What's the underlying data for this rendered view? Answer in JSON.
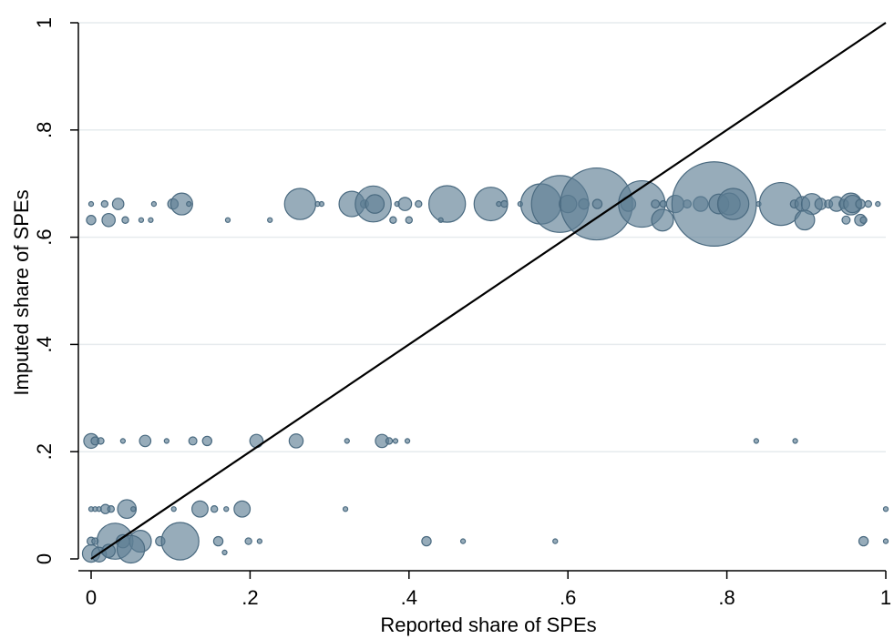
{
  "chart_data": {
    "type": "scatter",
    "xlabel": "Reported share of SPEs",
    "ylabel": "Imputed share of SPEs",
    "xlim": [
      0,
      1
    ],
    "ylim": [
      0,
      1
    ],
    "x_ticks": [
      {
        "value": 0,
        "label": "0"
      },
      {
        "value": 0.2,
        "label": ".2"
      },
      {
        "value": 0.4,
        "label": ".4"
      },
      {
        "value": 0.6,
        "label": ".6"
      },
      {
        "value": 0.8,
        "label": ".8"
      },
      {
        "value": 1,
        "label": "1"
      }
    ],
    "y_ticks": [
      {
        "value": 0,
        "label": "0"
      },
      {
        "value": 0.2,
        "label": ".2"
      },
      {
        "value": 0.4,
        "label": ".4"
      },
      {
        "value": 0.6,
        "label": ".6"
      },
      {
        "value": 0.8,
        "label": ".8"
      },
      {
        "value": 1,
        "label": "1"
      }
    ],
    "grid": "horizontal",
    "reference_line": {
      "from": [
        0,
        0
      ],
      "to": [
        1,
        1
      ],
      "color": "#000000"
    },
    "marker_color": "#5f7f95",
    "marker_fill_opacity": 0.65,
    "points": [
      {
        "x": 0.0,
        "y": 0.662,
        "w": 1
      },
      {
        "x": 0.017,
        "y": 0.662,
        "w": 2
      },
      {
        "x": 0.034,
        "y": 0.662,
        "w": 6
      },
      {
        "x": 0.079,
        "y": 0.662,
        "w": 1
      },
      {
        "x": 0.103,
        "y": 0.662,
        "w": 5
      },
      {
        "x": 0.114,
        "y": 0.662,
        "w": 22
      },
      {
        "x": 0.123,
        "y": 0.662,
        "w": 1
      },
      {
        "x": 0.263,
        "y": 0.662,
        "w": 45
      },
      {
        "x": 0.285,
        "y": 0.662,
        "w": 1
      },
      {
        "x": 0.29,
        "y": 0.662,
        "w": 1
      },
      {
        "x": 0.328,
        "y": 0.662,
        "w": 30
      },
      {
        "x": 0.344,
        "y": 0.662,
        "w": 3
      },
      {
        "x": 0.355,
        "y": 0.662,
        "w": 60
      },
      {
        "x": 0.357,
        "y": 0.662,
        "w": 16
      },
      {
        "x": 0.385,
        "y": 0.662,
        "w": 1
      },
      {
        "x": 0.395,
        "y": 0.662,
        "w": 8
      },
      {
        "x": 0.412,
        "y": 0.662,
        "w": 2
      },
      {
        "x": 0.448,
        "y": 0.662,
        "w": 62
      },
      {
        "x": 0.503,
        "y": 0.662,
        "w": 52
      },
      {
        "x": 0.513,
        "y": 0.662,
        "w": 1
      },
      {
        "x": 0.52,
        "y": 0.662,
        "w": 2
      },
      {
        "x": 0.54,
        "y": 0.662,
        "w": 1
      },
      {
        "x": 0.566,
        "y": 0.662,
        "w": 75
      },
      {
        "x": 0.59,
        "y": 0.662,
        "w": 150
      },
      {
        "x": 0.6,
        "y": 0.662,
        "w": 14
      },
      {
        "x": 0.62,
        "y": 0.662,
        "w": 5
      },
      {
        "x": 0.636,
        "y": 0.662,
        "w": 240
      },
      {
        "x": 0.637,
        "y": 0.662,
        "w": 4
      },
      {
        "x": 0.676,
        "y": 0.662,
        "w": 10
      },
      {
        "x": 0.693,
        "y": 0.662,
        "w": 100
      },
      {
        "x": 0.71,
        "y": 0.662,
        "w": 3
      },
      {
        "x": 0.72,
        "y": 0.662,
        "w": 2
      },
      {
        "x": 0.735,
        "y": 0.662,
        "w": 14
      },
      {
        "x": 0.75,
        "y": 0.662,
        "w": 3
      },
      {
        "x": 0.767,
        "y": 0.662,
        "w": 10
      },
      {
        "x": 0.784,
        "y": 0.662,
        "w": 330
      },
      {
        "x": 0.79,
        "y": 0.662,
        "w": 18
      },
      {
        "x": 0.803,
        "y": 0.662,
        "w": 22
      },
      {
        "x": 0.808,
        "y": 0.662,
        "w": 45
      },
      {
        "x": 0.84,
        "y": 0.662,
        "w": 1
      },
      {
        "x": 0.868,
        "y": 0.662,
        "w": 85
      },
      {
        "x": 0.885,
        "y": 0.662,
        "w": 3
      },
      {
        "x": 0.895,
        "y": 0.662,
        "w": 10
      },
      {
        "x": 0.907,
        "y": 0.662,
        "w": 20
      },
      {
        "x": 0.918,
        "y": 0.662,
        "w": 6
      },
      {
        "x": 0.928,
        "y": 0.662,
        "w": 3
      },
      {
        "x": 0.938,
        "y": 0.662,
        "w": 10
      },
      {
        "x": 0.947,
        "y": 0.662,
        "w": 4
      },
      {
        "x": 0.956,
        "y": 0.662,
        "w": 22
      },
      {
        "x": 0.958,
        "y": 0.662,
        "w": 14
      },
      {
        "x": 0.968,
        "y": 0.662,
        "w": 4
      },
      {
        "x": 0.978,
        "y": 0.662,
        "w": 2
      },
      {
        "x": 0.99,
        "y": 0.662,
        "w": 1
      },
      {
        "x": 0.0,
        "y": 0.632,
        "w": 4
      },
      {
        "x": 0.022,
        "y": 0.632,
        "w": 8
      },
      {
        "x": 0.043,
        "y": 0.632,
        "w": 2
      },
      {
        "x": 0.063,
        "y": 0.632,
        "w": 1
      },
      {
        "x": 0.075,
        "y": 0.632,
        "w": 1
      },
      {
        "x": 0.172,
        "y": 0.632,
        "w": 1
      },
      {
        "x": 0.225,
        "y": 0.632,
        "w": 1
      },
      {
        "x": 0.38,
        "y": 0.632,
        "w": 2
      },
      {
        "x": 0.4,
        "y": 0.632,
        "w": 2
      },
      {
        "x": 0.44,
        "y": 0.632,
        "w": 1
      },
      {
        "x": 0.719,
        "y": 0.632,
        "w": 22
      },
      {
        "x": 0.898,
        "y": 0.632,
        "w": 18
      },
      {
        "x": 0.95,
        "y": 0.632,
        "w": 3
      },
      {
        "x": 0.968,
        "y": 0.632,
        "w": 6
      },
      {
        "x": 0.972,
        "y": 0.632,
        "w": 2
      },
      {
        "x": 0.0,
        "y": 0.22,
        "w": 10
      },
      {
        "x": 0.005,
        "y": 0.22,
        "w": 3
      },
      {
        "x": 0.012,
        "y": 0.22,
        "w": 2
      },
      {
        "x": 0.04,
        "y": 0.22,
        "w": 1
      },
      {
        "x": 0.068,
        "y": 0.22,
        "w": 6
      },
      {
        "x": 0.095,
        "y": 0.22,
        "w": 1
      },
      {
        "x": 0.128,
        "y": 0.22,
        "w": 3
      },
      {
        "x": 0.146,
        "y": 0.22,
        "w": 4
      },
      {
        "x": 0.208,
        "y": 0.22,
        "w": 8
      },
      {
        "x": 0.258,
        "y": 0.22,
        "w": 9
      },
      {
        "x": 0.322,
        "y": 0.22,
        "w": 1
      },
      {
        "x": 0.366,
        "y": 0.22,
        "w": 8
      },
      {
        "x": 0.375,
        "y": 0.22,
        "w": 2
      },
      {
        "x": 0.383,
        "y": 0.22,
        "w": 1
      },
      {
        "x": 0.398,
        "y": 0.22,
        "w": 1
      },
      {
        "x": 0.837,
        "y": 0.22,
        "w": 1
      },
      {
        "x": 0.886,
        "y": 0.22,
        "w": 1
      },
      {
        "x": 0.0,
        "y": 0.093,
        "w": 1
      },
      {
        "x": 0.005,
        "y": 0.093,
        "w": 1
      },
      {
        "x": 0.01,
        "y": 0.093,
        "w": 1
      },
      {
        "x": 0.018,
        "y": 0.093,
        "w": 4
      },
      {
        "x": 0.025,
        "y": 0.093,
        "w": 2
      },
      {
        "x": 0.045,
        "y": 0.093,
        "w": 16
      },
      {
        "x": 0.053,
        "y": 0.093,
        "w": 1
      },
      {
        "x": 0.104,
        "y": 0.093,
        "w": 1
      },
      {
        "x": 0.137,
        "y": 0.093,
        "w": 12
      },
      {
        "x": 0.155,
        "y": 0.093,
        "w": 2
      },
      {
        "x": 0.17,
        "y": 0.093,
        "w": 1
      },
      {
        "x": 0.19,
        "y": 0.093,
        "w": 12
      },
      {
        "x": 0.32,
        "y": 0.093,
        "w": 1
      },
      {
        "x": 1.0,
        "y": 0.093,
        "w": 1
      },
      {
        "x": 0.0,
        "y": 0.033,
        "w": 3
      },
      {
        "x": 0.005,
        "y": 0.033,
        "w": 2
      },
      {
        "x": 0.03,
        "y": 0.033,
        "w": 60
      },
      {
        "x": 0.04,
        "y": 0.033,
        "w": 8
      },
      {
        "x": 0.062,
        "y": 0.033,
        "w": 22
      },
      {
        "x": 0.087,
        "y": 0.033,
        "w": 4
      },
      {
        "x": 0.112,
        "y": 0.033,
        "w": 65
      },
      {
        "x": 0.16,
        "y": 0.033,
        "w": 4
      },
      {
        "x": 0.198,
        "y": 0.033,
        "w": 2
      },
      {
        "x": 0.212,
        "y": 0.033,
        "w": 1
      },
      {
        "x": 0.422,
        "y": 0.033,
        "w": 4
      },
      {
        "x": 0.468,
        "y": 0.033,
        "w": 1
      },
      {
        "x": 0.584,
        "y": 0.033,
        "w": 1
      },
      {
        "x": 0.972,
        "y": 0.033,
        "w": 4
      },
      {
        "x": 1.0,
        "y": 0.033,
        "w": 1
      },
      {
        "x": 0.0,
        "y": 0.01,
        "w": 14
      },
      {
        "x": 0.01,
        "y": 0.008,
        "w": 10
      },
      {
        "x": 0.022,
        "y": 0.015,
        "w": 8
      },
      {
        "x": 0.05,
        "y": 0.018,
        "w": 35
      },
      {
        "x": 0.168,
        "y": 0.012,
        "w": 1
      }
    ]
  }
}
